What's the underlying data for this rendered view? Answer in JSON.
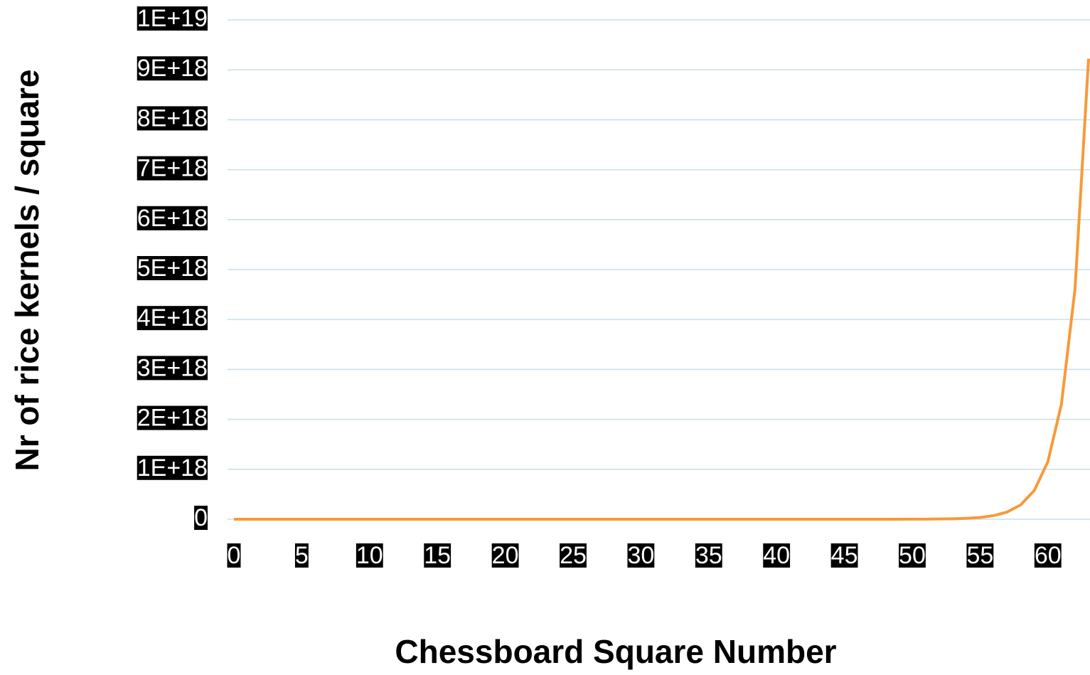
{
  "chart_data": {
    "type": "line",
    "x_label": "Chessboard Square Number",
    "y_label": "Nr of rice kernels / square",
    "x": [
      0,
      1,
      2,
      3,
      4,
      5,
      6,
      7,
      8,
      9,
      10,
      11,
      12,
      13,
      14,
      15,
      16,
      17,
      18,
      19,
      20,
      21,
      22,
      23,
      24,
      25,
      26,
      27,
      28,
      29,
      30,
      31,
      32,
      33,
      34,
      35,
      36,
      37,
      38,
      39,
      40,
      41,
      42,
      43,
      44,
      45,
      46,
      47,
      48,
      49,
      50,
      51,
      52,
      53,
      54,
      55,
      56,
      57,
      58,
      59,
      60,
      61,
      62,
      63
    ],
    "values": [
      1,
      2,
      4,
      8,
      16,
      32,
      64,
      128,
      256,
      512,
      1024,
      2048,
      4096,
      8192,
      16384,
      32768,
      65536,
      131072,
      262144,
      524288,
      1048576,
      2097152,
      4194304,
      8388608,
      16777216,
      33554432,
      67108864,
      134217728,
      268435456,
      536870912,
      1073741824,
      2147483648,
      4294967296,
      8589934592,
      17179869184,
      34359738368,
      68719476736,
      137438953472,
      274877906944,
      549755813888,
      1099511627776,
      2199023255552,
      4398046511104,
      8796093022208,
      17592186044416,
      35184372088832,
      70368744177664,
      140737488355328,
      281474976710656,
      562949953421312,
      1125899906842624,
      2251799813685248,
      4503599627370496,
      9007199254740992,
      18014398509481984,
      36028797018963968,
      72057594037927936,
      144115188075855872,
      288230376151711744,
      576460752303423488,
      1152921504606846976,
      2305843009213693952,
      4611686018427387904,
      9223372036854775808
    ],
    "color": "#f79a3a",
    "xlim": [
      0,
      63
    ],
    "xticks": [
      0,
      5,
      10,
      15,
      20,
      25,
      30,
      35,
      40,
      45,
      50,
      55,
      60
    ],
    "ylim": [
      0,
      1e+19
    ],
    "yticks": [
      0,
      {
        "value": 1e+18,
        "label": "1E+18"
      },
      {
        "value": 2e+18,
        "label": "2E+18"
      },
      {
        "value": 3e+18,
        "label": "3E+18"
      },
      {
        "value": 4e+18,
        "label": "4E+18"
      },
      {
        "value": 5e+18,
        "label": "5E+18"
      },
      {
        "value": 6e+18,
        "label": "6E+18"
      },
      {
        "value": 7e+18,
        "label": "7E+18"
      },
      {
        "value": 8e+18,
        "label": "8E+18"
      },
      {
        "value": 9e+18,
        "label": "9E+18"
      },
      {
        "value": 1e+19,
        "label": "1E+19"
      }
    ],
    "grid": true
  }
}
